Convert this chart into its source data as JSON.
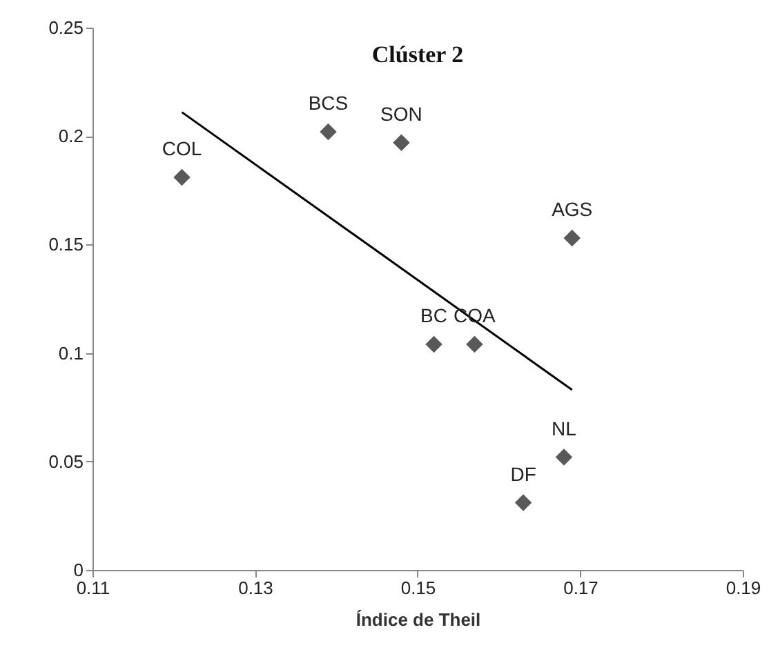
{
  "chart_data": {
    "type": "scatter",
    "title": "Clúster 2",
    "xlabel": "Índice de Theil",
    "x": [
      0.121,
      0.139,
      0.148,
      0.169,
      0.152,
      0.157,
      0.168,
      0.163
    ],
    "series": [
      {
        "color": "#595959",
        "marker": "diamond",
        "values": [
          0.181,
          0.202,
          0.197,
          0.153,
          0.104,
          0.104,
          0.052,
          0.031
        ]
      },
      {
        "type": "line",
        "color": "#000000",
        "marker": "none",
        "line_style": "solid",
        "x": [
          0.121,
          0.169
        ],
        "values": [
          0.211,
          0.083
        ]
      }
    ],
    "annotations": [
      {
        "text": "COL",
        "x": 0.121,
        "y": 0.181
      },
      {
        "text": "BCS",
        "x": 0.139,
        "y": 0.202
      },
      {
        "text": "SON",
        "x": 0.148,
        "y": 0.197
      },
      {
        "text": "AGS",
        "x": 0.169,
        "y": 0.153
      },
      {
        "text": "BC",
        "x": 0.152,
        "y": 0.104
      },
      {
        "text": "COA",
        "x": 0.157,
        "y": 0.104
      },
      {
        "text": "NL",
        "x": 0.168,
        "y": 0.052
      },
      {
        "text": "DF",
        "x": 0.163,
        "y": 0.031
      }
    ],
    "xlim": [
      0.11,
      0.19
    ],
    "xticks": [
      0.11,
      0.13,
      0.15,
      0.17,
      0.19
    ],
    "ylim": [
      0,
      0.25
    ],
    "yticks": [
      0,
      0.05,
      0.1,
      0.15,
      0.2,
      0.25
    ],
    "grid": false,
    "legend": false
  }
}
